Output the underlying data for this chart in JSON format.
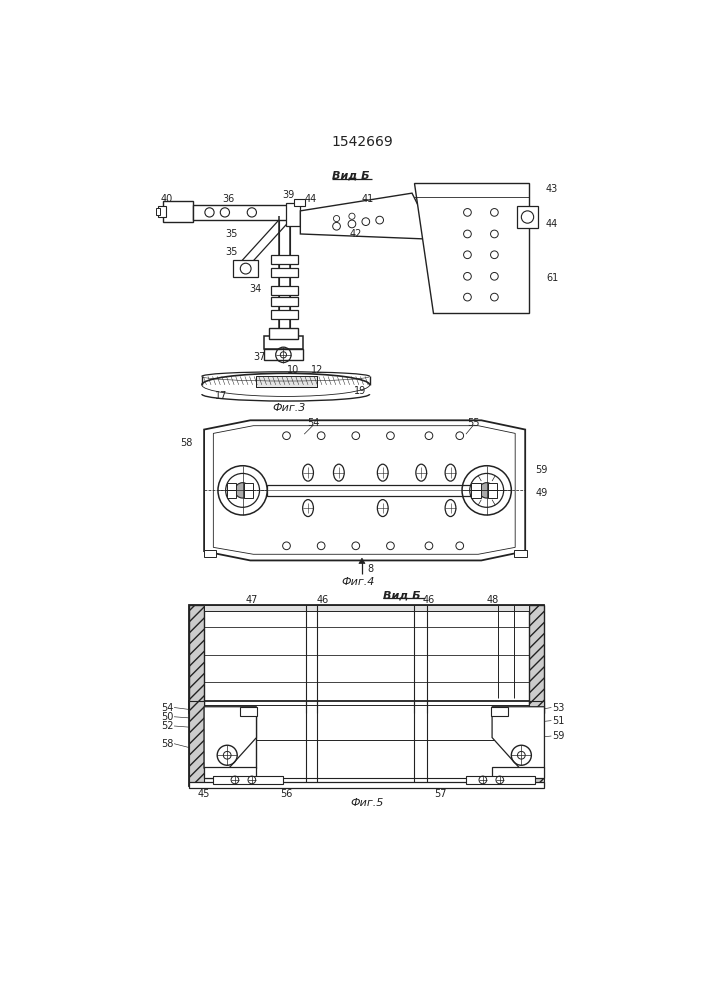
{
  "title": "1542669",
  "fig3_label": "Фиг.3",
  "fig4_label": "Фиг.4",
  "fig5_label": "Фиг.5",
  "vid_b_label": "Вид Б",
  "background_color": "#ffffff",
  "line_color": "#222222",
  "lw": 0.8,
  "tlw": 0.4
}
